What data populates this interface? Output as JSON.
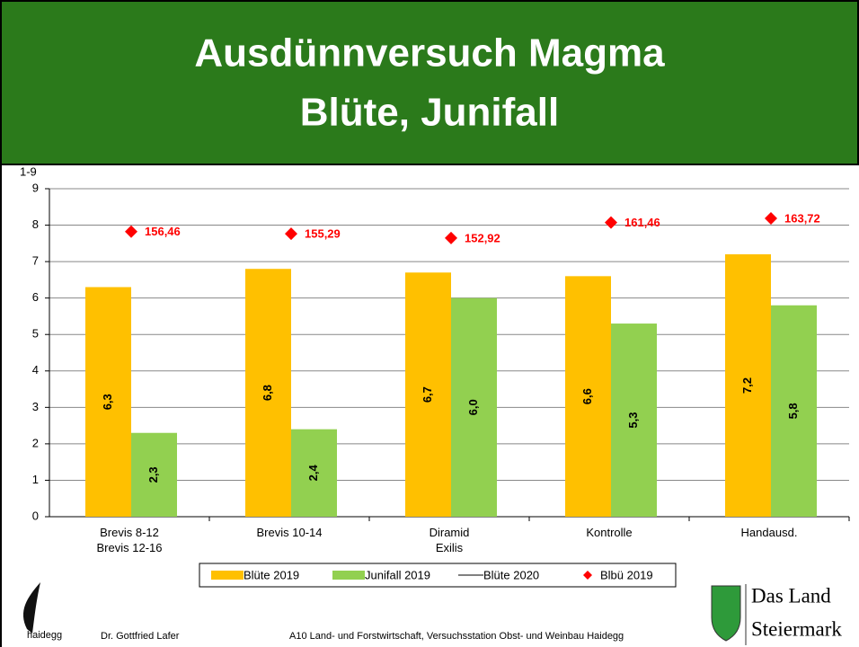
{
  "slide": {
    "title": "Ausdünnversuch Magma",
    "subtitle": "Blüte, Junifall",
    "logo_text": "haidegg",
    "author": "Dr. Gottfried Lafer",
    "institution": "A10 Land- und Forstwirtschaft, Versuchsstation Obst- und Weinbau Haidegg",
    "brand_line1": "Das Land",
    "brand_line2": "Steiermark"
  },
  "chart_data": {
    "type": "bar",
    "y_label": "1-9",
    "categories": [
      "Brevis 8-12\nBrevis 12-16",
      "Brevis 10-14",
      "Diramid\nExilis",
      "Kontrolle",
      "Handausd."
    ],
    "ylim": [
      0,
      9
    ],
    "yticks": [
      0,
      1,
      2,
      3,
      4,
      5,
      6,
      7,
      8,
      9
    ],
    "y2lim": [
      0,
      180
    ],
    "grid": true,
    "series": [
      {
        "name": "Blüte 2019",
        "type": "bar",
        "color": "#ffc000",
        "values": [
          6.3,
          6.8,
          6.7,
          6.6,
          7.2
        ],
        "value_labels": [
          "6,3",
          "6,8",
          "6,7",
          "6,6",
          "7,2"
        ]
      },
      {
        "name": "Junifall 2019",
        "type": "bar",
        "color": "#92d050",
        "values": [
          2.3,
          2.4,
          6.0,
          5.3,
          5.8
        ],
        "value_labels": [
          "2,3",
          "2,4",
          "6,0",
          "5,3",
          "5,8"
        ]
      },
      {
        "name": "Blüte 2020",
        "type": "line",
        "color": "#808080",
        "values": [
          null,
          null,
          null,
          null,
          null
        ]
      },
      {
        "name": "Blbü 2019",
        "type": "scatter",
        "axis": "y2",
        "color": "#ff0000",
        "values": [
          156.46,
          155.29,
          152.92,
          161.46,
          163.72
        ],
        "value_labels": [
          "156,46",
          "155,29",
          "152,92",
          "161,46",
          "163,72"
        ]
      }
    ]
  }
}
